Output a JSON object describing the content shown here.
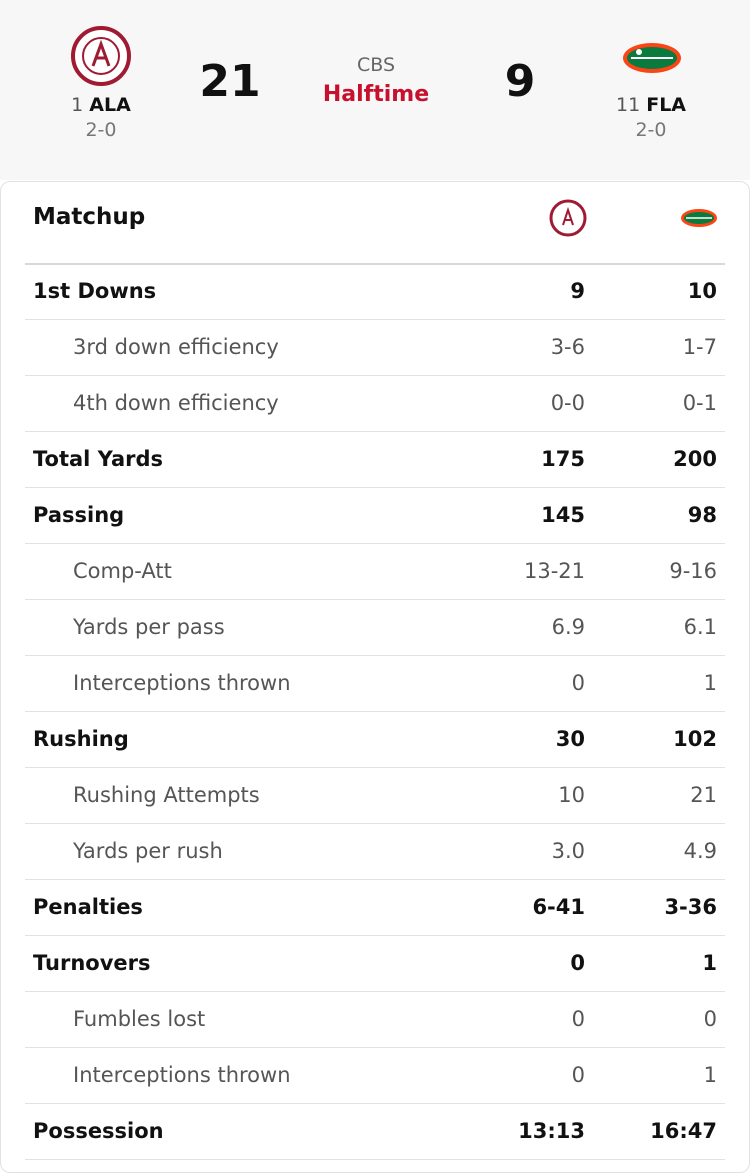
{
  "header": {
    "home": {
      "rank": 1,
      "abbr": "ALA",
      "record": "2-0",
      "score": 21
    },
    "away": {
      "rank": 11,
      "abbr": "FLA",
      "record": "2-0",
      "score": 9
    },
    "network": "CBS",
    "status": "Halftime"
  },
  "matchup": {
    "title": "Matchup",
    "groups": [
      {
        "label": "1st Downs",
        "home": "9",
        "away": "10",
        "details": [
          {
            "label": "3rd down efficiency",
            "home": "3-6",
            "away": "1-7"
          },
          {
            "label": "4th down efficiency",
            "home": "0-0",
            "away": "0-1"
          }
        ]
      },
      {
        "label": "Total Yards",
        "home": "175",
        "away": "200"
      },
      {
        "label": "Passing",
        "home": "145",
        "away": "98",
        "details": [
          {
            "label": "Comp-Att",
            "home": "13-21",
            "away": "9-16"
          },
          {
            "label": "Yards per pass",
            "home": "6.9",
            "away": "6.1"
          },
          {
            "label": "Interceptions thrown",
            "home": "0",
            "away": "1"
          }
        ]
      },
      {
        "label": "Rushing",
        "home": "30",
        "away": "102",
        "details": [
          {
            "label": "Rushing Attempts",
            "home": "10",
            "away": "21"
          },
          {
            "label": "Yards per rush",
            "home": "3.0",
            "away": "4.9"
          }
        ]
      },
      {
        "label": "Penalties",
        "home": "6-41",
        "away": "3-36"
      },
      {
        "label": "Turnovers",
        "home": "0",
        "away": "1",
        "details": [
          {
            "label": "Fumbles lost",
            "home": "0",
            "away": "0"
          },
          {
            "label": "Interceptions thrown",
            "home": "0",
            "away": "1"
          }
        ]
      },
      {
        "label": "Possession",
        "home": "13:13",
        "away": "16:47"
      }
    ]
  }
}
